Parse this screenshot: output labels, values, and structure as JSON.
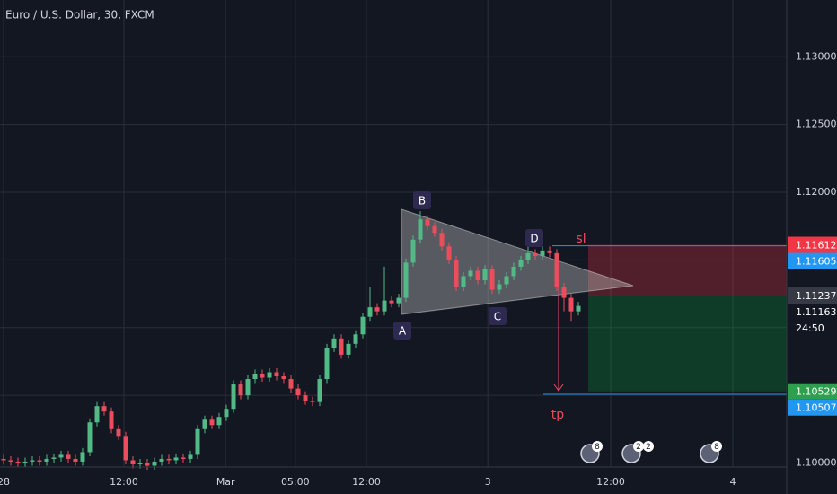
{
  "chart_data": {
    "type": "candlestick",
    "title": "Euro / U.S. Dollar, 30, FXCM",
    "xlim": [
      -0.5,
      109
    ],
    "ylim": [
      1.0997,
      1.1342
    ],
    "grid": true,
    "up_color": "#53b987",
    "down_color": "#eb4d5c",
    "xticks": [
      {
        "value": 0,
        "label": "28"
      },
      {
        "value": 16.75,
        "label": "12:00"
      },
      {
        "value": 30.9,
        "label": "Mar"
      },
      {
        "value": 40.6,
        "label": "05:00"
      },
      {
        "value": 50.5,
        "label": "12:00"
      },
      {
        "value": 67.4,
        "label": "3"
      },
      {
        "value": 84.5,
        "label": "12:00"
      },
      {
        "value": 101.5,
        "label": "4"
      }
    ],
    "yticks": [
      {
        "value": 1.1,
        "label": "1.10000"
      },
      {
        "value": 1.105,
        "label": "1.10500"
      },
      {
        "value": 1.11,
        "label": "1.11000"
      },
      {
        "value": 1.115,
        "label": "1.11500"
      },
      {
        "value": 1.12,
        "label": "1.12000"
      },
      {
        "value": 1.125,
        "label": "1.12500"
      },
      {
        "value": 1.13,
        "label": "1.13000"
      }
    ],
    "open": [
      1.1003,
      1.1002,
      1.1001,
      1.1,
      1.1001,
      1.1002,
      1.1001,
      1.1003,
      1.1004,
      1.1006,
      1.1003,
      1.1001,
      1.1008,
      1.103,
      1.1042,
      1.1038,
      1.1025,
      1.102,
      1.1002,
      1.0999,
      1.1,
      1.0998,
      1.1001,
      1.1003,
      1.1002,
      1.1004,
      1.1003,
      1.1006,
      1.1025,
      1.1032,
      1.1028,
      1.1034,
      1.104,
      1.1058,
      1.105,
      1.1062,
      1.1066,
      1.1063,
      1.1067,
      1.1064,
      1.1062,
      1.1055,
      1.105,
      1.1046,
      1.1045,
      1.1062,
      1.1085,
      1.1092,
      1.108,
      1.1088,
      1.1095,
      1.1108,
      1.1115,
      1.1112,
      1.112,
      1.1118,
      1.1122,
      1.1148,
      1.1165,
      1.118,
      1.1175,
      1.117,
      1.116,
      1.115,
      1.113,
      1.1138,
      1.1142,
      1.1135,
      1.1143,
      1.1128,
      1.1132,
      1.1138,
      1.1145,
      1.115,
      1.1155,
      1.1153,
      1.1157,
      1.1155,
      1.113,
      1.1122,
      1.1112
    ],
    "high": [
      1.1006,
      1.1005,
      1.1004,
      1.1004,
      1.1005,
      1.1005,
      1.1006,
      1.1007,
      1.1009,
      1.1009,
      1.1006,
      1.1011,
      1.1033,
      1.1045,
      1.1045,
      1.1041,
      1.1028,
      1.1023,
      1.1005,
      1.1003,
      1.1003,
      1.1004,
      1.1006,
      1.1006,
      1.1007,
      1.1007,
      1.1009,
      1.1028,
      1.1035,
      1.1035,
      1.1037,
      1.1043,
      1.1061,
      1.1061,
      1.1065,
      1.1069,
      1.1069,
      1.107,
      1.107,
      1.1067,
      1.1065,
      1.1058,
      1.1053,
      1.1049,
      1.1065,
      1.1088,
      1.1095,
      1.1095,
      1.1091,
      1.1098,
      1.1111,
      1.113,
      1.1118,
      1.1145,
      1.1123,
      1.1125,
      1.1151,
      1.1168,
      1.1186,
      1.1183,
      1.1178,
      1.1173,
      1.1163,
      1.1153,
      1.1141,
      1.1145,
      1.1145,
      1.1146,
      1.1146,
      1.1135,
      1.1141,
      1.1148,
      1.1153,
      1.116,
      1.1158,
      1.116,
      1.116,
      1.1158,
      1.1133,
      1.1125,
      1.1119
    ],
    "low": [
      1.0999,
      1.0998,
      1.0997,
      1.0997,
      1.0998,
      1.0998,
      1.0998,
      1.1,
      1.1001,
      1.1,
      1.0998,
      1.0998,
      1.1005,
      1.1027,
      1.1035,
      1.1022,
      1.1017,
      1.0999,
      1.0996,
      1.0996,
      1.0995,
      1.0995,
      1.0998,
      1.0999,
      1.0999,
      1.1,
      1.1,
      1.1003,
      1.1022,
      1.1025,
      1.1025,
      1.1031,
      1.1037,
      1.1047,
      1.1047,
      1.1059,
      1.106,
      1.106,
      1.1061,
      1.1059,
      1.1052,
      1.1047,
      1.1043,
      1.1042,
      1.1042,
      1.1059,
      1.1082,
      1.1077,
      1.1077,
      1.1085,
      1.1092,
      1.1105,
      1.1109,
      1.1109,
      1.1115,
      1.1115,
      1.1119,
      1.1145,
      1.1162,
      1.1172,
      1.1167,
      1.1157,
      1.1147,
      1.1127,
      1.1127,
      1.1135,
      1.1132,
      1.1132,
      1.1125,
      1.1125,
      1.1129,
      1.1135,
      1.1142,
      1.1147,
      1.115,
      1.115,
      1.1152,
      1.1127,
      1.1112,
      1.1105,
      1.1109
    ],
    "close": [
      1.1002,
      1.1001,
      1.1,
      1.1001,
      1.1002,
      1.1001,
      1.1003,
      1.1004,
      1.1006,
      1.1003,
      1.1001,
      1.1008,
      1.103,
      1.1042,
      1.1038,
      1.1025,
      1.102,
      1.1002,
      1.0999,
      1.1,
      1.0998,
      1.1001,
      1.1003,
      1.1002,
      1.1004,
      1.1003,
      1.1006,
      1.1025,
      1.1032,
      1.1028,
      1.1034,
      1.104,
      1.1058,
      1.105,
      1.1062,
      1.1066,
      1.1063,
      1.1067,
      1.1064,
      1.1062,
      1.1055,
      1.105,
      1.1046,
      1.1045,
      1.1062,
      1.1085,
      1.1092,
      1.108,
      1.1088,
      1.1095,
      1.1108,
      1.1115,
      1.1112,
      1.112,
      1.1118,
      1.1122,
      1.1148,
      1.1165,
      1.118,
      1.1175,
      1.117,
      1.116,
      1.115,
      1.113,
      1.1138,
      1.1142,
      1.1135,
      1.1143,
      1.1128,
      1.1132,
      1.1138,
      1.1145,
      1.115,
      1.1155,
      1.1153,
      1.1157,
      1.1155,
      1.113,
      1.1122,
      1.1112,
      1.1116
    ],
    "position": {
      "stop": 1.11612,
      "stop_line": 1.11605,
      "entry": 1.11237,
      "target": 1.10529,
      "target_line": 1.10507
    },
    "last_price": 1.11163,
    "countdown": "24:50",
    "pattern_labels": [
      "A",
      "B",
      "C",
      "D"
    ],
    "stop_label": "sl",
    "target_label": "tp",
    "events": [
      "8",
      "2",
      "2",
      "8"
    ]
  }
}
